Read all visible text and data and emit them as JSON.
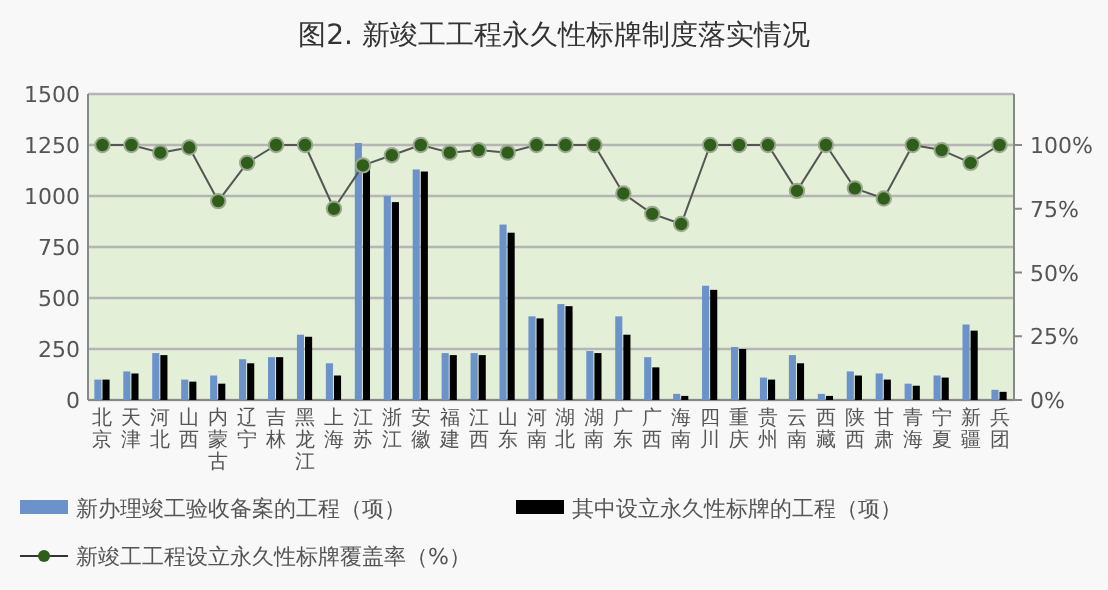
{
  "chart_data": {
    "type": "bar",
    "title": "图2. 新竣工工程永久性标牌制度落实情况",
    "categories": [
      "北京",
      "天津",
      "河北",
      "山西",
      "内蒙古",
      "辽宁",
      "吉林",
      "黑龙江",
      "上海",
      "江苏",
      "浙江",
      "安徽",
      "福建",
      "江西",
      "山东",
      "河南",
      "湖北",
      "湖南",
      "广东",
      "广西",
      "海南",
      "四川",
      "重庆",
      "贵州",
      "云南",
      "西藏",
      "陕西",
      "甘肃",
      "青海",
      "宁夏",
      "新疆",
      "兵团"
    ],
    "series": [
      {
        "name": "新办理竣工验收备案的工程（项）",
        "color": "#6b93c9",
        "values": [
          100,
          140,
          230,
          100,
          120,
          200,
          210,
          320,
          180,
          1260,
          1000,
          1130,
          230,
          230,
          860,
          410,
          470,
          240,
          410,
          210,
          30,
          560,
          260,
          110,
          220,
          30,
          140,
          130,
          80,
          120,
          370,
          50
        ]
      },
      {
        "name": "其中设立永久性标牌的工程（项）",
        "color": "#000000",
        "values": [
          100,
          130,
          220,
          90,
          80,
          180,
          210,
          310,
          120,
          1140,
          970,
          1120,
          220,
          220,
          820,
          400,
          460,
          230,
          320,
          160,
          20,
          540,
          250,
          100,
          180,
          20,
          120,
          100,
          70,
          110,
          340,
          40
        ]
      },
      {
        "name": "新竣工工程设立永久性标牌覆盖率（%）",
        "type": "line",
        "axis": "y2",
        "color": "#2e5e1a",
        "marker": "circle",
        "values": [
          100,
          100,
          97,
          99,
          78,
          93,
          100,
          100,
          75,
          92,
          96,
          100,
          97,
          98,
          97,
          100,
          100,
          100,
          81,
          73,
          69,
          100,
          100,
          100,
          82,
          100,
          83,
          79,
          100,
          98,
          93,
          100
        ]
      }
    ],
    "ylim": [
      0,
      1500
    ],
    "yticks": [
      0,
      250,
      500,
      750,
      1000,
      1250,
      1500
    ],
    "y2lim": [
      0,
      120
    ],
    "y2ticks": [
      {
        "value": 0,
        "label": "0%"
      },
      {
        "value": 25,
        "label": "25%"
      },
      {
        "value": 50,
        "label": "50%"
      },
      {
        "value": 75,
        "label": "75%"
      },
      {
        "value": 100,
        "label": "100%"
      }
    ],
    "grid": "y",
    "legend": "bottom"
  }
}
